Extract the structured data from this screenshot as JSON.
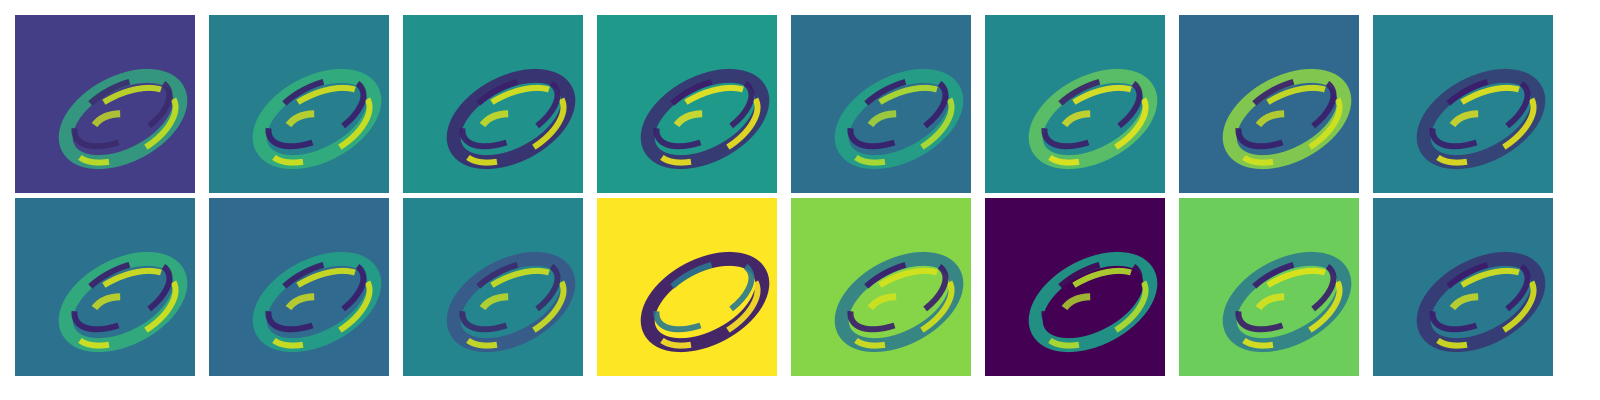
{
  "figure": {
    "rows": 2,
    "cols": 8,
    "colormap": "viridis",
    "tiles": [
      {
        "row": 0,
        "col": 0,
        "bg": "#433e85",
        "ring": "#2fb47c",
        "ring_opacity": 0.75,
        "hi": "#c8e020",
        "lo": "#3b2a6e",
        "feature": "feature-map-1"
      },
      {
        "row": 0,
        "col": 1,
        "bg": "#277f8e",
        "ring": "#35b779",
        "ring_opacity": 0.8,
        "hi": "#d8e219",
        "lo": "#3b1c6b",
        "feature": "feature-map-2"
      },
      {
        "row": 0,
        "col": 2,
        "bg": "#21918c",
        "ring": "#3b2a6e",
        "ring_opacity": 0.9,
        "hi": "#e1e318",
        "lo": "#3a1f6a",
        "feature": "feature-map-3"
      },
      {
        "row": 0,
        "col": 3,
        "bg": "#1f9a8a",
        "ring": "#3b2a6e",
        "ring_opacity": 0.85,
        "hi": "#f0e51c",
        "lo": "#3c1e6a",
        "feature": "feature-map-4"
      },
      {
        "row": 0,
        "col": 4,
        "bg": "#2e6f8e",
        "ring": "#22a884",
        "ring_opacity": 0.8,
        "hi": "#b5de2b",
        "lo": "#3a1c6a",
        "feature": "feature-map-5"
      },
      {
        "row": 0,
        "col": 5,
        "bg": "#23888e",
        "ring": "#6ccd5a",
        "ring_opacity": 0.75,
        "hi": "#e5e419",
        "lo": "#3b1f6c",
        "feature": "feature-map-6"
      },
      {
        "row": 0,
        "col": 6,
        "bg": "#31688e",
        "ring": "#8fd744",
        "ring_opacity": 0.85,
        "hi": "#d2e21b",
        "lo": "#3a1c6b",
        "feature": "feature-map-7"
      },
      {
        "row": 0,
        "col": 7,
        "bg": "#26828e",
        "ring": "#3b2a6e",
        "ring_opacity": 0.7,
        "hi": "#e8e419",
        "lo": "#3b1c6b",
        "feature": "feature-map-8"
      },
      {
        "row": 1,
        "col": 0,
        "bg": "#2c728e",
        "ring": "#35b779",
        "ring_opacity": 0.8,
        "hi": "#d8e219",
        "lo": "#3b1c6b",
        "feature": "feature-map-9"
      },
      {
        "row": 1,
        "col": 1,
        "bg": "#306a8e",
        "ring": "#22a884",
        "ring_opacity": 0.8,
        "hi": "#d5e21a",
        "lo": "#3a1c6a",
        "feature": "feature-map-10"
      },
      {
        "row": 1,
        "col": 2,
        "bg": "#25858e",
        "ring": "#3e4a89",
        "ring_opacity": 0.7,
        "hi": "#d0e11c",
        "lo": "#3b2a6e",
        "feature": "feature-map-11"
      },
      {
        "row": 1,
        "col": 3,
        "bg": "#fde725",
        "ring": "#3b1c6b",
        "ring_opacity": 0.95,
        "hi": "#fde725",
        "lo": "#2a788e",
        "feature": "feature-map-12"
      },
      {
        "row": 1,
        "col": 4,
        "bg": "#86d549",
        "ring": "#2a788e",
        "ring_opacity": 0.85,
        "hi": "#d8e219",
        "lo": "#3b1c6b",
        "feature": "feature-map-13"
      },
      {
        "row": 1,
        "col": 5,
        "bg": "#440154",
        "ring": "#1f9e89",
        "ring_opacity": 0.9,
        "hi": "#b5de2b",
        "lo": "#440154",
        "feature": "feature-map-14"
      },
      {
        "row": 1,
        "col": 6,
        "bg": "#6ccd5a",
        "ring": "#2a788e",
        "ring_opacity": 0.85,
        "hi": "#e3e418",
        "lo": "#3b1c6b",
        "feature": "feature-map-15"
      },
      {
        "row": 1,
        "col": 7,
        "bg": "#2a788e",
        "ring": "#3b2a6e",
        "ring_opacity": 0.75,
        "hi": "#d8e219",
        "lo": "#3b1c6b",
        "feature": "feature-map-16"
      }
    ]
  }
}
